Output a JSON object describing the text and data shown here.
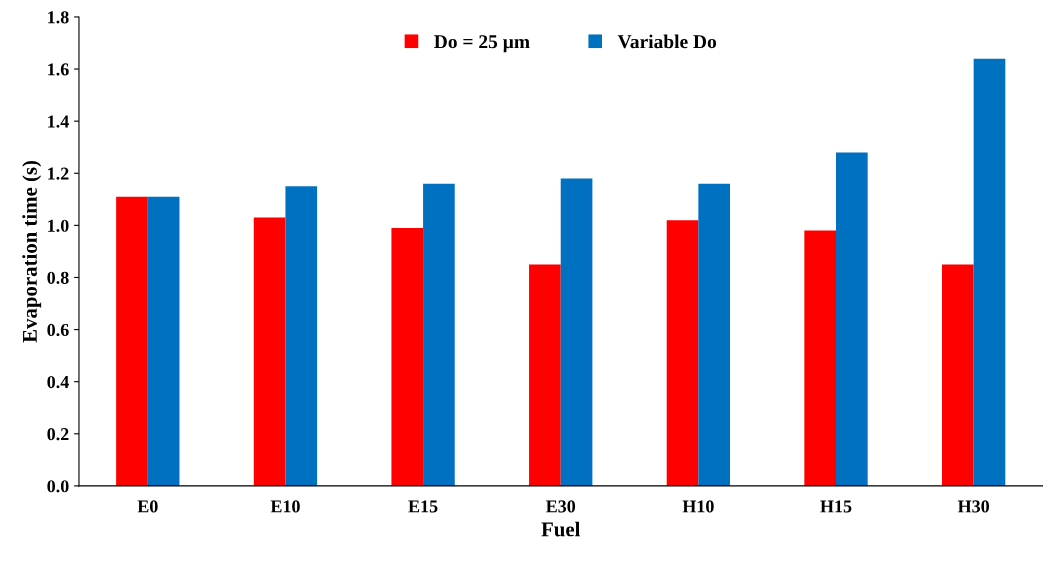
{
  "chart_data": {
    "type": "bar",
    "xlabel": "Fuel",
    "ylabel": "Evaporation time (s)",
    "categories": [
      "E0",
      "E10",
      "E15",
      "E30",
      "H10",
      "H15",
      "H30"
    ],
    "series": [
      {
        "name": "Do = 25 µm",
        "color": "#ff0000",
        "values": [
          1.11,
          1.03,
          0.99,
          0.85,
          1.02,
          0.98,
          0.85
        ]
      },
      {
        "name": "Variable Do",
        "color": "#0070c0",
        "values": [
          1.11,
          1.15,
          1.16,
          1.18,
          1.16,
          1.28,
          1.64
        ]
      }
    ],
    "ylim": [
      0,
      1.8
    ],
    "yticks": [
      {
        "value": 0,
        "label": "0.0"
      },
      0.2,
      0.4,
      0.6,
      0.8,
      {
        "value": 1,
        "label": "1.0"
      },
      1.2,
      1.4,
      1.6,
      1.8
    ],
    "grid": false,
    "legend": "top"
  }
}
